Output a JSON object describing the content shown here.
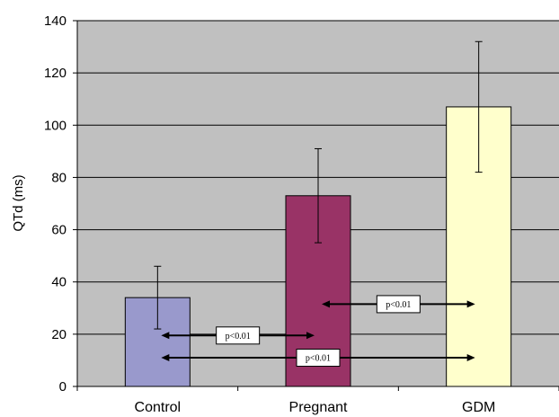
{
  "chart_data": {
    "type": "bar",
    "title": "",
    "xlabel": "",
    "ylabel": "QTd (ms)",
    "ylim": [
      0,
      140
    ],
    "yticks": [
      0,
      20,
      40,
      60,
      80,
      100,
      120,
      140
    ],
    "grid": true,
    "categories": [
      "Control",
      "Pregnant",
      "GDM"
    ],
    "values": [
      34,
      73,
      107
    ],
    "errors": [
      12,
      18,
      25
    ],
    "bar_colors": [
      "#9999cc",
      "#993366",
      "#ffffcc"
    ],
    "plot_background": "#c0c0c0",
    "comparisons": [
      {
        "from": "Control",
        "to": "Pregnant",
        "y": 19.5,
        "label": "p<0.01"
      },
      {
        "from": "Pregnant",
        "to": "GDM",
        "y": 31.5,
        "label": "p<0.01"
      },
      {
        "from": "Control",
        "to": "GDM",
        "y": 11,
        "label": "p<0.01"
      }
    ]
  }
}
